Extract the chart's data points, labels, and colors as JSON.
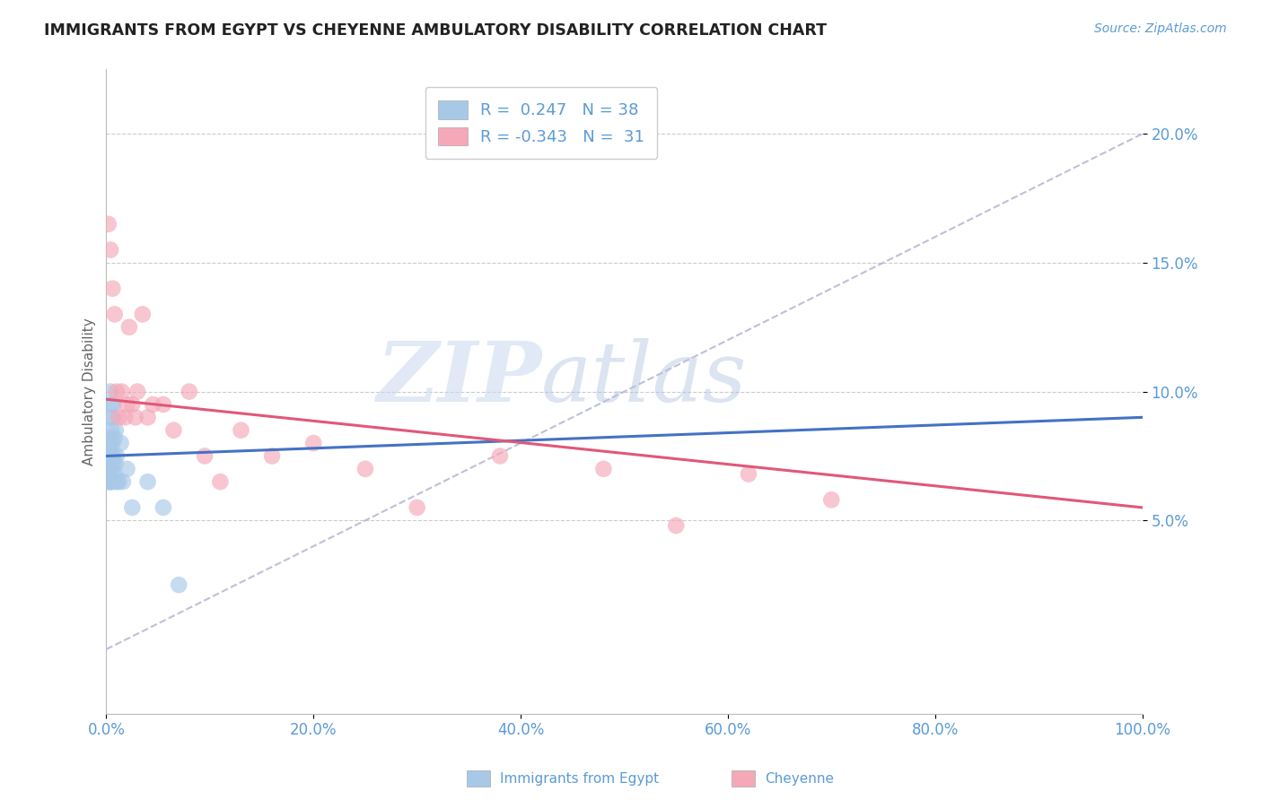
{
  "title": "IMMIGRANTS FROM EGYPT VS CHEYENNE AMBULATORY DISABILITY CORRELATION CHART",
  "source_text": "Source: ZipAtlas.com",
  "ylabel": "Ambulatory Disability",
  "legend_label_1": "Immigrants from Egypt",
  "legend_label_2": "Cheyenne",
  "r1": 0.247,
  "n1": 38,
  "r2": -0.343,
  "n2": 31,
  "color_blue": "#A8C8E8",
  "color_pink": "#F4A8B8",
  "line_color_blue": "#4472C4",
  "line_color_pink": "#E05878",
  "watermark_zip": "ZIP",
  "watermark_atlas": "atlas",
  "blue_x": [
    0.001,
    0.001,
    0.002,
    0.002,
    0.002,
    0.003,
    0.003,
    0.003,
    0.003,
    0.003,
    0.004,
    0.004,
    0.004,
    0.004,
    0.005,
    0.005,
    0.005,
    0.005,
    0.006,
    0.006,
    0.006,
    0.006,
    0.007,
    0.007,
    0.008,
    0.008,
    0.009,
    0.009,
    0.01,
    0.01,
    0.012,
    0.014,
    0.016,
    0.02,
    0.025,
    0.04,
    0.055,
    0.07
  ],
  "blue_y": [
    0.068,
    0.072,
    0.065,
    0.07,
    0.078,
    0.065,
    0.068,
    0.075,
    0.082,
    0.09,
    0.065,
    0.072,
    0.08,
    0.1,
    0.068,
    0.075,
    0.085,
    0.095,
    0.065,
    0.072,
    0.08,
    0.09,
    0.075,
    0.095,
    0.068,
    0.082,
    0.072,
    0.085,
    0.065,
    0.075,
    0.065,
    0.08,
    0.065,
    0.07,
    0.055,
    0.065,
    0.055,
    0.025
  ],
  "pink_x": [
    0.002,
    0.004,
    0.006,
    0.008,
    0.01,
    0.012,
    0.015,
    0.018,
    0.02,
    0.022,
    0.025,
    0.028,
    0.03,
    0.035,
    0.04,
    0.045,
    0.055,
    0.065,
    0.08,
    0.095,
    0.11,
    0.13,
    0.16,
    0.2,
    0.25,
    0.3,
    0.38,
    0.48,
    0.55,
    0.62,
    0.7
  ],
  "pink_y": [
    0.165,
    0.155,
    0.14,
    0.13,
    0.1,
    0.09,
    0.1,
    0.09,
    0.095,
    0.125,
    0.095,
    0.09,
    0.1,
    0.13,
    0.09,
    0.095,
    0.095,
    0.085,
    0.1,
    0.075,
    0.065,
    0.085,
    0.075,
    0.08,
    0.07,
    0.055,
    0.075,
    0.07,
    0.048,
    0.068,
    0.058
  ],
  "xlim": [
    0.0,
    1.0
  ],
  "ylim": [
    -0.025,
    0.225
  ],
  "yticks": [
    0.05,
    0.1,
    0.15,
    0.2
  ],
  "ytick_labels": [
    "5.0%",
    "10.0%",
    "15.0%",
    "20.0%"
  ],
  "xticks": [
    0.0,
    0.2,
    0.4,
    0.6,
    0.8,
    1.0
  ],
  "xtick_labels": [
    "0.0%",
    "20.0%",
    "40.0%",
    "60.0%",
    "80.0%",
    "100.0%"
  ],
  "tick_color": "#5B9BD5",
  "grid_color": "#CCCCCC",
  "background_color": "#FFFFFF",
  "blue_trend": [
    0.0,
    1.0,
    0.075,
    0.09
  ],
  "pink_trend": [
    0.0,
    1.0,
    0.097,
    0.055
  ]
}
